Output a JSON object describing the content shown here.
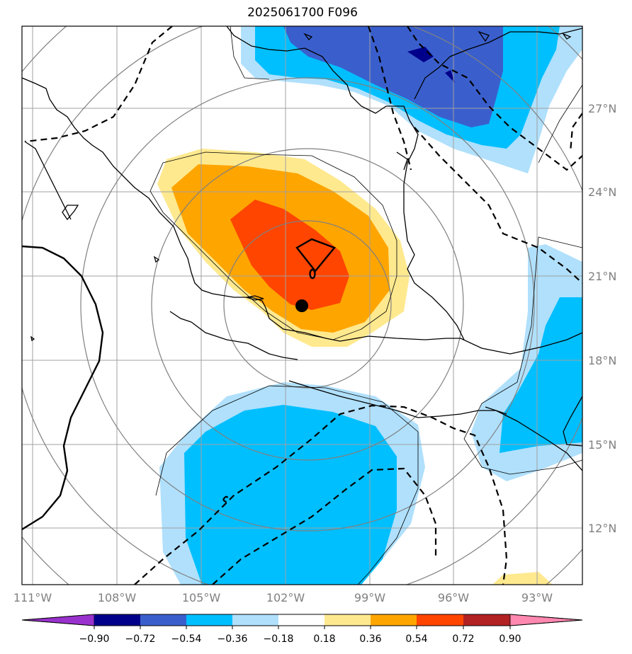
{
  "title": "2025061700 F096",
  "map": {
    "lon_labels": [
      "111°W",
      "108°W",
      "105°W",
      "102°W",
      "99°W",
      "96°W",
      "93°W"
    ],
    "lat_labels": [
      "27°N",
      "24°N",
      "21°N",
      "18°N",
      "15°N",
      "12°N"
    ],
    "center_marker": "filled-circle"
  },
  "colorbar": {
    "labels": [
      "−0.90",
      "−0.72",
      "−0.54",
      "−0.36",
      "−0.18",
      "0.18",
      "0.36",
      "0.54",
      "0.72",
      "0.90"
    ],
    "colors": [
      "#9932cc",
      "#00008b",
      "#3a5fcd",
      "#00bfff",
      "#b0e0fc",
      "#ffffff",
      "#ffe98f",
      "#ffa500",
      "#ff4500",
      "#b22222",
      "#ff88b0"
    ]
  }
}
